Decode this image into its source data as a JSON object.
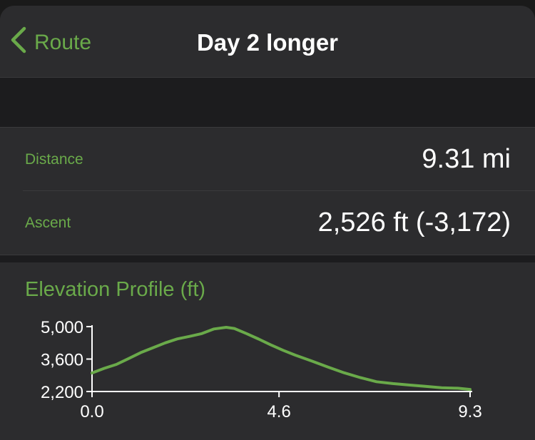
{
  "navbar": {
    "back_label": "Route",
    "title": "Day 2 longer"
  },
  "stats": {
    "distance_label": "Distance",
    "distance_value": "9.31 mi",
    "ascent_label": "Ascent",
    "ascent_value": "2,526 ft (-3,172)"
  },
  "elevation": {
    "title": "Elevation Profile (ft)"
  },
  "colors": {
    "accent": "#6aaa4a",
    "background": "#2c2c2e"
  },
  "chart_data": {
    "type": "line",
    "title": "Elevation Profile (ft)",
    "xlabel": "",
    "ylabel": "",
    "xlim": [
      0,
      9.3
    ],
    "ylim": [
      2200,
      5000
    ],
    "x_ticks": [
      "0.0",
      "4.6",
      "9.3"
    ],
    "y_ticks": [
      "5,000",
      "3,600",
      "2,200"
    ],
    "x_tick_values": [
      0,
      4.6,
      9.3
    ],
    "y_tick_values": [
      5000,
      3600,
      2200
    ],
    "series": [
      {
        "x": [
          0,
          0.3,
          0.6,
          0.9,
          1.2,
          1.5,
          1.8,
          2.1,
          2.4,
          2.7,
          3.0,
          3.3,
          3.5,
          3.8,
          4.1,
          4.4,
          4.7,
          5.0,
          5.4,
          5.8,
          6.2,
          6.6,
          7.0,
          7.4,
          7.8,
          8.2,
          8.6,
          9.0,
          9.3
        ],
        "values": [
          3000,
          3200,
          3370,
          3620,
          3880,
          4090,
          4300,
          4470,
          4580,
          4700,
          4900,
          4970,
          4920,
          4700,
          4460,
          4210,
          3980,
          3770,
          3520,
          3260,
          3010,
          2800,
          2620,
          2540,
          2480,
          2420,
          2360,
          2340,
          2290
        ]
      }
    ]
  }
}
